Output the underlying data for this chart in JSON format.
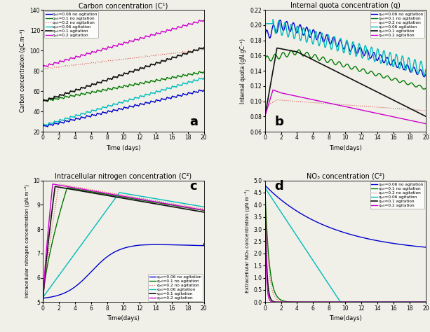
{
  "title_a": "Carbon concentration (C¹)",
  "title_b": "Internal quota concentration (q)",
  "title_c": "Intracellular nitrogen concentration (C²)",
  "title_d": "NO₃ concentration (C²)",
  "ylabel_a": "Carbon concentration (gC.m⁻³)",
  "ylabel_b": "Internal quota (gN.gC⁻¹)",
  "ylabel_c": "Intracellular nitrogen concentration (gN.m⁻³)",
  "ylabel_d": "Extracellular NO₃ concentration (gN.m⁻³)",
  "xlabel_a": "Time (days)",
  "xlabel_bcd": "Time(days)",
  "legend_labels": [
    "qₙ₀=0.06 no agitation",
    "qₙ₀=0.1 no agitation",
    "qₙ₀=0.2 no agitation",
    "qₙ₀=0.06 agitation",
    "qₙ₀=0.1 agitation",
    "qₙ₀=0.2 agitation"
  ],
  "colors": [
    "#0000cc",
    "#007700",
    "#dd5555",
    "#00bbbb",
    "#111111",
    "#cc00cc"
  ],
  "linestyles": [
    "-",
    "-",
    ":",
    "-",
    "-",
    "-"
  ],
  "linewidths": [
    1.0,
    1.0,
    0.8,
    1.0,
    1.2,
    1.0
  ],
  "ylim_a": [
    20,
    140
  ],
  "ylim_b": [
    0.06,
    0.22
  ],
  "ylim_c": [
    5.0,
    10.0
  ],
  "ylim_d": [
    0.0,
    5.0
  ],
  "xlim": [
    0,
    20
  ],
  "bg_color": "#f0f0e8"
}
